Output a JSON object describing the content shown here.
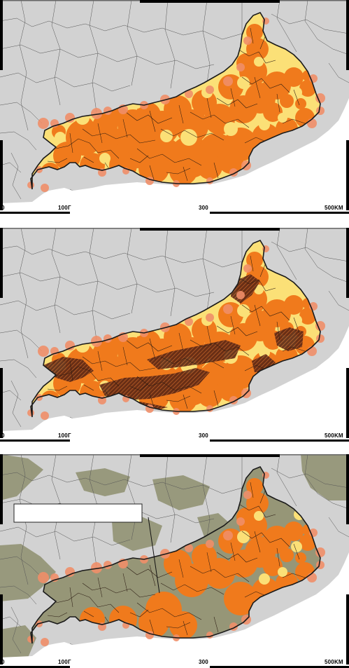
{
  "colors": {
    "land_outside": "#d2d2d2",
    "water": "#ffffff",
    "orange": "#f07a1c",
    "yellow": "#fbe077",
    "salmon": "#ef8e68",
    "hatch": "#7a3a1a",
    "olive": "#8e8f6e",
    "olive_light": "#a7a98c",
    "border": "#1a1a1a"
  },
  "panels": [
    {
      "id": "panel-1",
      "variant": "base",
      "scale": {
        "left": "0",
        "mid1": "100Г",
        "mid2": "300",
        "right": "500KM"
      }
    },
    {
      "id": "panel-2",
      "variant": "hatched",
      "scale": {
        "left": "0",
        "mid1": "100Г",
        "mid2": "300",
        "right": "500KM"
      }
    },
    {
      "id": "panel-3",
      "variant": "olive",
      "scale": {
        "left": "0",
        "mid1": "100Г",
        "mid2": "300",
        "right": "500KM"
      },
      "label_box": {
        "text": ""
      }
    }
  ]
}
